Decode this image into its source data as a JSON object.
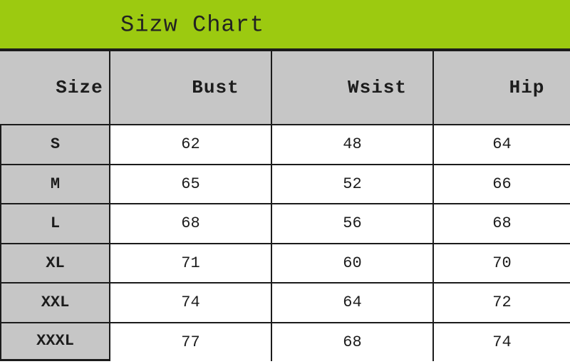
{
  "chart_data": {
    "type": "table",
    "title": "Sizw Chart",
    "columns": [
      "Size",
      "Bust",
      "Wsist",
      "Hip"
    ],
    "rows": [
      [
        "S",
        62,
        48,
        64
      ],
      [
        "M",
        65,
        52,
        66
      ],
      [
        "L",
        68,
        56,
        68
      ],
      [
        "XL",
        71,
        60,
        70
      ],
      [
        "XXL",
        74,
        64,
        72
      ],
      [
        "XXXL",
        77,
        68,
        74
      ]
    ]
  },
  "colors": {
    "title_bg": "#9CCA10",
    "header_bg": "#C6C6C6",
    "cell_bg": "#FFFFFF",
    "border": "#1B1B1B",
    "text": "#1C1C1C"
  }
}
